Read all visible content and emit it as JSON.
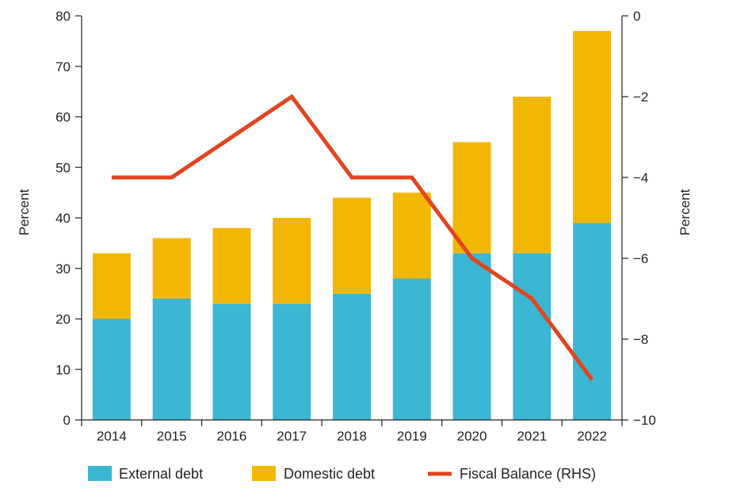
{
  "chart_data": {
    "type": "bar",
    "stacked": true,
    "categories": [
      "2014",
      "2015",
      "2016",
      "2017",
      "2018",
      "2019",
      "2020",
      "2021",
      "2022"
    ],
    "series": [
      {
        "name": "External debt",
        "kind": "bar",
        "axis": "left",
        "color": "#3bb6d3",
        "values": [
          20,
          24,
          23,
          23,
          25,
          28,
          33,
          33,
          39
        ]
      },
      {
        "name": "Domestic debt",
        "kind": "bar",
        "axis": "left",
        "color": "#f2b705",
        "values": [
          13,
          12,
          15,
          17,
          19,
          17,
          22,
          31,
          38
        ]
      },
      {
        "name": "Fiscal Balance (RHS)",
        "kind": "line",
        "axis": "right",
        "color": "#e0451f",
        "values": [
          -4,
          -4,
          -3,
          -2,
          -4,
          -4,
          -6,
          -7,
          -9
        ]
      }
    ],
    "left_axis": {
      "label": "Percent",
      "range": [
        0,
        80
      ],
      "ticks": [
        "0",
        "10",
        "20",
        "30",
        "40",
        "50",
        "60",
        "70",
        "80"
      ]
    },
    "right_axis": {
      "label": "Percent",
      "range": [
        -10,
        0
      ],
      "ticks": [
        "0",
        "−2",
        "−4",
        "−6",
        "−8",
        "−10"
      ]
    },
    "legend": {
      "placement": "bottom"
    }
  }
}
